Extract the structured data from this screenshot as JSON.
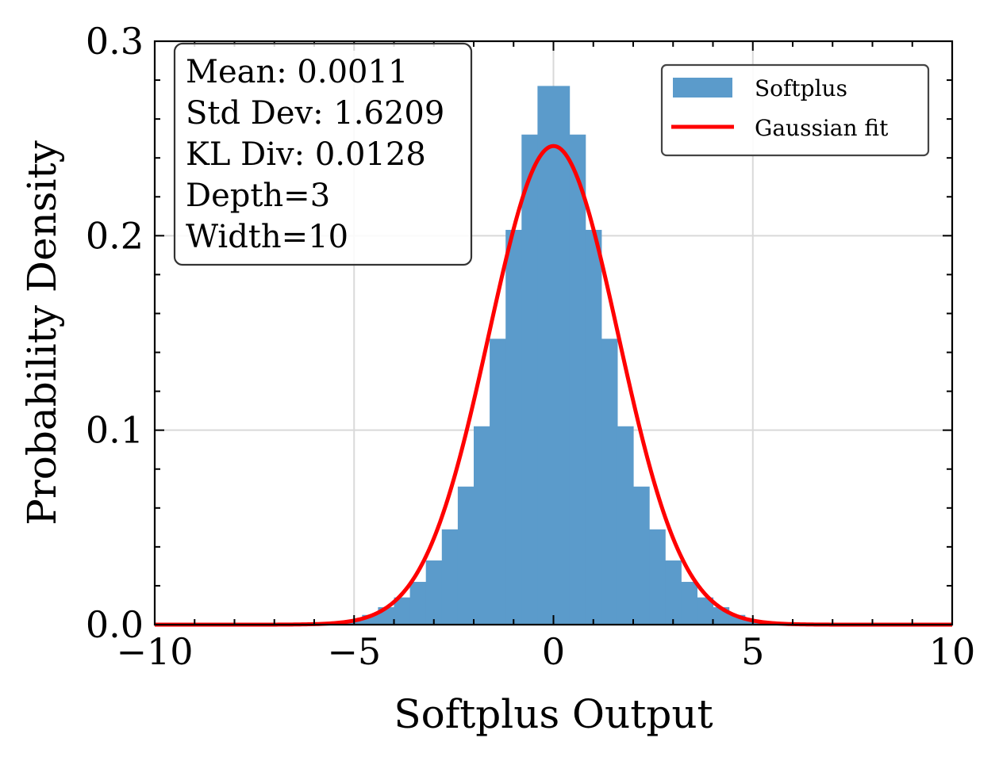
{
  "chart_data": {
    "type": "bar",
    "title": "",
    "xlabel": "Softplus Output",
    "ylabel": "Probability Density",
    "xlim": [
      -10,
      10
    ],
    "ylim": [
      0,
      0.3
    ],
    "grid": true,
    "x_ticks": [
      -10,
      -5,
      0,
      5,
      10
    ],
    "x_tick_labels": [
      "−10",
      "−5",
      "0",
      "5",
      "10"
    ],
    "y_ticks": [
      0.0,
      0.1,
      0.2,
      0.3
    ],
    "y_tick_labels": [
      "0.0",
      "0.1",
      "0.2",
      "0.3"
    ],
    "legend_position": "top-right",
    "histogram": {
      "name": "Softplus",
      "color": "#5b9bcb",
      "bin_edges": [
        -5.6,
        -5.2,
        -4.8,
        -4.4,
        -4.0,
        -3.6,
        -3.2,
        -2.8,
        -2.4,
        -2.0,
        -1.6,
        -1.2,
        -0.8,
        -0.4,
        0.0,
        0.4,
        0.8,
        1.2,
        1.6,
        2.0,
        2.4,
        2.8,
        3.2,
        3.6,
        4.0,
        4.4,
        4.8,
        5.2,
        5.6
      ],
      "densities": [
        0.001,
        0.002,
        0.005,
        0.009,
        0.014,
        0.022,
        0.033,
        0.049,
        0.071,
        0.102,
        0.147,
        0.203,
        0.252,
        0.277,
        0.277,
        0.252,
        0.203,
        0.147,
        0.102,
        0.071,
        0.049,
        0.033,
        0.022,
        0.014,
        0.009,
        0.005,
        0.002,
        0.001
      ]
    },
    "series": [
      {
        "name": "Gaussian fit",
        "type": "line",
        "color": "#ff0000",
        "mean": 0.0011,
        "std": 1.6209
      }
    ],
    "stats_box": {
      "lines": [
        "Mean: 0.0011",
        "Std Dev: 1.6209",
        "KL Div: 0.0128",
        "Depth=3",
        "Width=10"
      ]
    },
    "legend": [
      {
        "label": "Softplus",
        "kind": "patch",
        "color": "#5b9bcb"
      },
      {
        "label": "Gaussian fit",
        "kind": "line",
        "color": "#ff0000"
      }
    ]
  }
}
